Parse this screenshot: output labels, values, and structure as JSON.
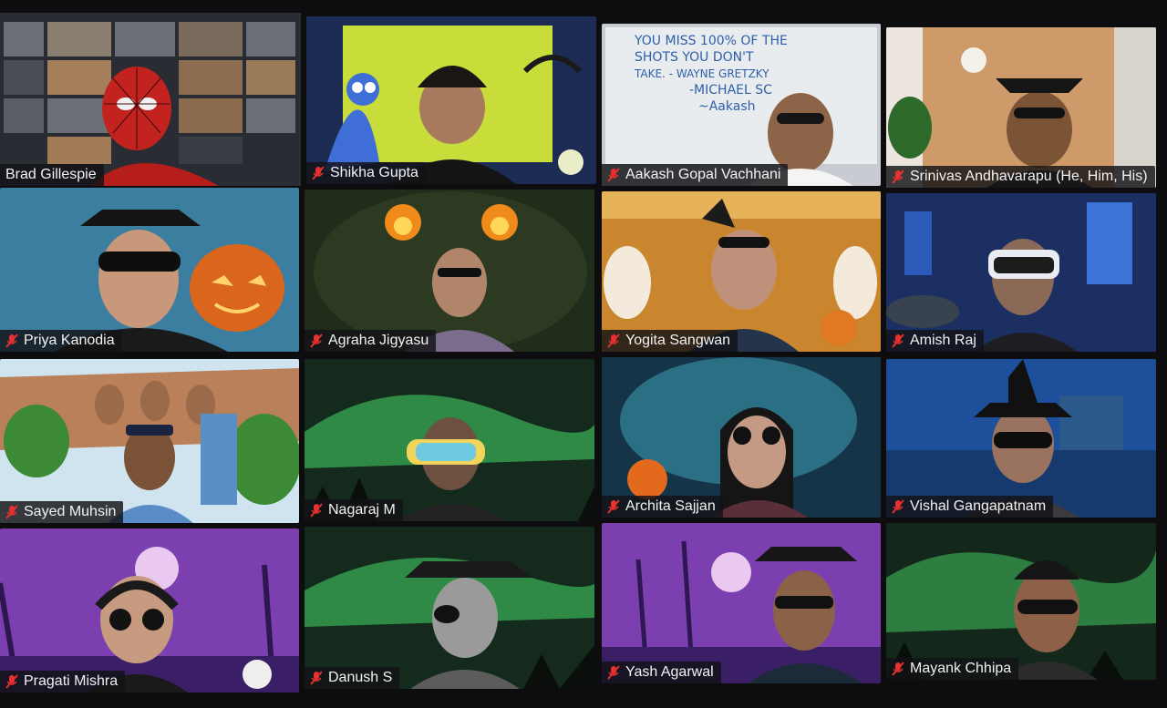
{
  "app": "Zoom",
  "view": "Gallery View",
  "participants": [
    {
      "name": "Brad Gillespie",
      "muted": true,
      "active_speaker": true,
      "shared_screen": true
    },
    {
      "name": "Shikha Gupta",
      "muted": true
    },
    {
      "name": "Aakash Gopal Vachhani",
      "muted": true,
      "whiteboard_text": [
        "YOU MISS 100% OF THE",
        "SHOTS YOU DON'T",
        "TAKE. - WAYNE GRETZKY",
        "-MICHAEL SC",
        "~Aakash"
      ]
    },
    {
      "name": "Srinivas Andhavarapu (He, Him, His)",
      "muted": true
    },
    {
      "name": "Priya Kanodia",
      "muted": true
    },
    {
      "name": "Agraha Jigyasu",
      "muted": true
    },
    {
      "name": "Yogita Sangwan",
      "muted": true
    },
    {
      "name": "Amish Raj",
      "muted": true
    },
    {
      "name": "Sayed Muhsin",
      "muted": true
    },
    {
      "name": "Nagaraj M",
      "muted": true
    },
    {
      "name": "Archita Sajjan",
      "muted": true
    },
    {
      "name": "Vishal Gangapatnam",
      "muted": true
    },
    {
      "name": "Pragati Mishra",
      "muted": true
    },
    {
      "name": "Danush S",
      "muted": true
    },
    {
      "name": "Yash Agarwal",
      "muted": true
    },
    {
      "name": "Mayank Chhipa",
      "muted": true
    }
  ],
  "icons": {
    "mute": "mic-muted-icon"
  },
  "colors": {
    "active_border": "#e6e05a",
    "mute_icon": "#e5312f",
    "label_bg": "#121216"
  }
}
